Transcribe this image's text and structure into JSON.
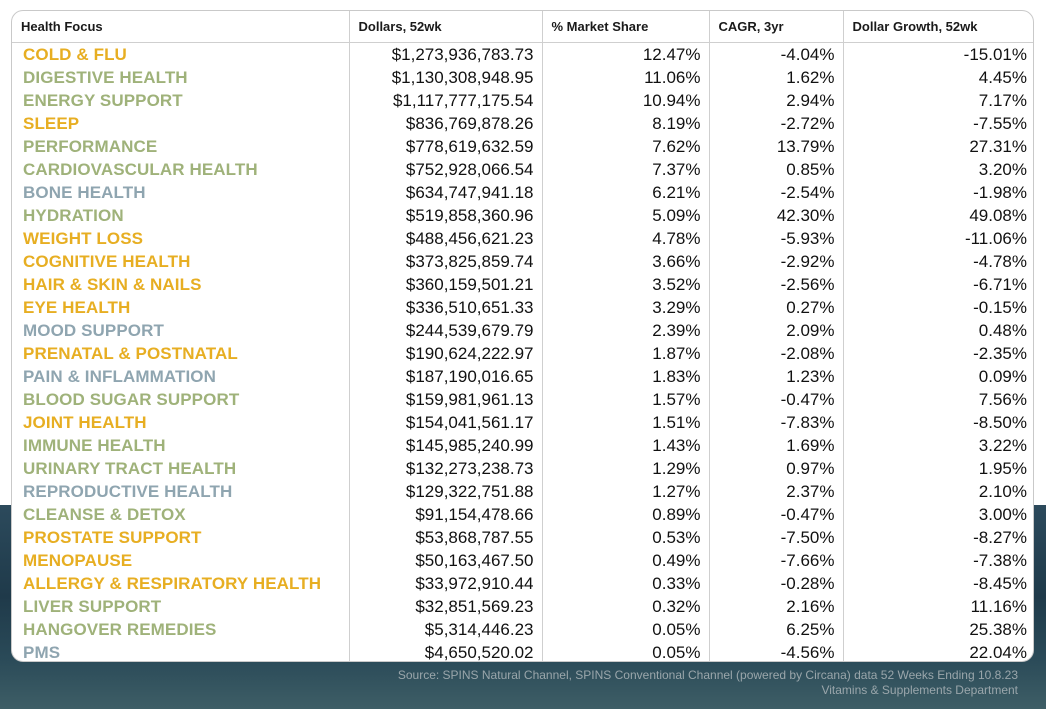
{
  "table": {
    "headers": [
      "Health Focus",
      "Dollars, 52wk",
      "% Market Share",
      "CAGR, 3yr",
      "Dollar Growth, 52wk"
    ],
    "rows": [
      {
        "name": "COLD & FLU",
        "color": "#e7ae22",
        "dollars": "$1,273,936,783.73",
        "share": "12.47%",
        "cagr": "-4.04%",
        "growth": "-15.01%"
      },
      {
        "name": "DIGESTIVE HEALTH",
        "color": "#9fb27a",
        "dollars": "$1,130,308,948.95",
        "share": "11.06%",
        "cagr": "1.62%",
        "growth": "4.45%"
      },
      {
        "name": "ENERGY SUPPORT",
        "color": "#9fb27a",
        "dollars": "$1,117,777,175.54",
        "share": "10.94%",
        "cagr": "2.94%",
        "growth": "7.17%"
      },
      {
        "name": "SLEEP",
        "color": "#e7ae22",
        "dollars": "$836,769,878.26",
        "share": "8.19%",
        "cagr": "-2.72%",
        "growth": "-7.55%"
      },
      {
        "name": "PERFORMANCE",
        "color": "#9fb27a",
        "dollars": "$778,619,632.59",
        "share": "7.62%",
        "cagr": "13.79%",
        "growth": "27.31%"
      },
      {
        "name": "CARDIOVASCULAR HEALTH",
        "color": "#9fb27a",
        "dollars": "$752,928,066.54",
        "share": "7.37%",
        "cagr": "0.85%",
        "growth": "3.20%"
      },
      {
        "name": "BONE HEALTH",
        "color": "#8fa5b0",
        "dollars": "$634,747,941.18",
        "share": "6.21%",
        "cagr": "-2.54%",
        "growth": "-1.98%"
      },
      {
        "name": "HYDRATION",
        "color": "#9fb27a",
        "dollars": "$519,858,360.96",
        "share": "5.09%",
        "cagr": "42.30%",
        "growth": "49.08%"
      },
      {
        "name": "WEIGHT LOSS",
        "color": "#e7ae22",
        "dollars": "$488,456,621.23",
        "share": "4.78%",
        "cagr": "-5.93%",
        "growth": "-11.06%"
      },
      {
        "name": "COGNITIVE HEALTH",
        "color": "#e7ae22",
        "dollars": "$373,825,859.74",
        "share": "3.66%",
        "cagr": "-2.92%",
        "growth": "-4.78%"
      },
      {
        "name": "HAIR & SKIN & NAILS",
        "color": "#e7ae22",
        "dollars": "$360,159,501.21",
        "share": "3.52%",
        "cagr": "-2.56%",
        "growth": "-6.71%"
      },
      {
        "name": "EYE HEALTH",
        "color": "#e7ae22",
        "dollars": "$336,510,651.33",
        "share": "3.29%",
        "cagr": "0.27%",
        "growth": "-0.15%"
      },
      {
        "name": "MOOD SUPPORT",
        "color": "#8fa5b0",
        "dollars": "$244,539,679.79",
        "share": "2.39%",
        "cagr": "2.09%",
        "growth": "0.48%"
      },
      {
        "name": "PRENATAL & POSTNATAL",
        "color": "#e7ae22",
        "dollars": "$190,624,222.97",
        "share": "1.87%",
        "cagr": "-2.08%",
        "growth": "-2.35%"
      },
      {
        "name": "PAIN & INFLAMMATION",
        "color": "#8fa5b0",
        "dollars": "$187,190,016.65",
        "share": "1.83%",
        "cagr": "1.23%",
        "growth": "0.09%"
      },
      {
        "name": "BLOOD SUGAR SUPPORT",
        "color": "#9fb27a",
        "dollars": "$159,981,961.13",
        "share": "1.57%",
        "cagr": "-0.47%",
        "growth": "7.56%"
      },
      {
        "name": "JOINT HEALTH",
        "color": "#e7ae22",
        "dollars": "$154,041,561.17",
        "share": "1.51%",
        "cagr": "-7.83%",
        "growth": "-8.50%"
      },
      {
        "name": "IMMUNE HEALTH",
        "color": "#9fb27a",
        "dollars": "$145,985,240.99",
        "share": "1.43%",
        "cagr": "1.69%",
        "growth": "3.22%"
      },
      {
        "name": "URINARY TRACT HEALTH",
        "color": "#9fb27a",
        "dollars": "$132,273,238.73",
        "share": "1.29%",
        "cagr": "0.97%",
        "growth": "1.95%"
      },
      {
        "name": "REPRODUCTIVE HEALTH",
        "color": "#8fa5b0",
        "dollars": "$129,322,751.88",
        "share": "1.27%",
        "cagr": "2.37%",
        "growth": "2.10%"
      },
      {
        "name": "CLEANSE & DETOX",
        "color": "#9fb27a",
        "dollars": "$91,154,478.66",
        "share": "0.89%",
        "cagr": "-0.47%",
        "growth": "3.00%"
      },
      {
        "name": "PROSTATE SUPPORT",
        "color": "#e7ae22",
        "dollars": "$53,868,787.55",
        "share": "0.53%",
        "cagr": "-7.50%",
        "growth": "-8.27%"
      },
      {
        "name": "MENOPAUSE",
        "color": "#e7ae22",
        "dollars": "$50,163,467.50",
        "share": "0.49%",
        "cagr": "-7.66%",
        "growth": "-7.38%"
      },
      {
        "name": "ALLERGY & RESPIRATORY HEALTH",
        "color": "#e7ae22",
        "dollars": "$33,972,910.44",
        "share": "0.33%",
        "cagr": "-0.28%",
        "growth": "-8.45%"
      },
      {
        "name": "LIVER SUPPORT",
        "color": "#9fb27a",
        "dollars": "$32,851,569.23",
        "share": "0.32%",
        "cagr": "2.16%",
        "growth": "11.16%"
      },
      {
        "name": "HANGOVER REMEDIES",
        "color": "#9fb27a",
        "dollars": "$5,314,446.23",
        "share": "0.05%",
        "cagr": "6.25%",
        "growth": "25.38%"
      },
      {
        "name": "PMS",
        "color": "#8fa5b0",
        "dollars": "$4,650,520.02",
        "share": "0.05%",
        "cagr": "-4.56%",
        "growth": "22.04%"
      }
    ]
  },
  "source": {
    "line1": "Source: SPINS Natural Channel, SPINS Conventional Channel (powered by Circana) data 52 Weeks Ending 10.8.23",
    "line2": "Vitamins & Supplements Department"
  }
}
